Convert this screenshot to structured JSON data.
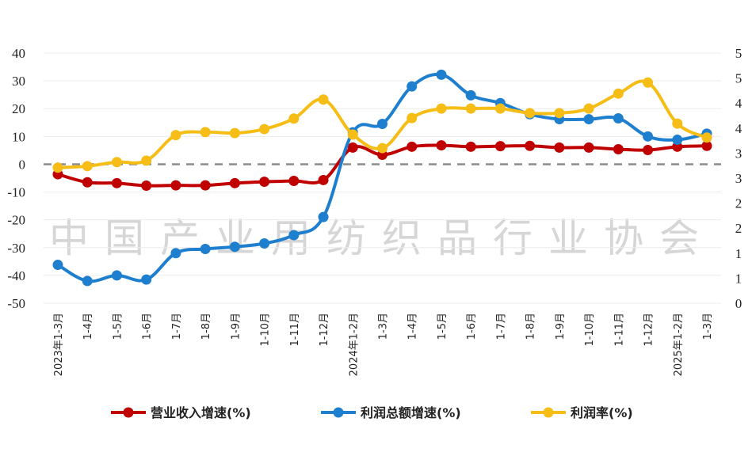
{
  "chart_data": {
    "type": "line",
    "categories": [
      "2023年1-3月",
      "1-4月",
      "1-5月",
      "1-6月",
      "1-7月",
      "1-8月",
      "1-9月",
      "1-10月",
      "1-11月",
      "1-12月",
      "2024年1-2月",
      "1-3月",
      "1-4月",
      "1-5月",
      "1-6月",
      "1-7月",
      "1-8月",
      "1-9月",
      "1-10月",
      "1-11月",
      "1-12月",
      "2025年1-2月",
      "1-3月"
    ],
    "left_axis": {
      "range": [
        -50,
        40
      ],
      "ticks": [
        "40",
        "30",
        "20",
        "10",
        "0",
        "-10",
        "-20",
        "-30",
        "-40",
        "-50"
      ]
    },
    "right_axis": {
      "range": [
        0,
        5
      ],
      "ticks": [
        "5",
        "5",
        "4",
        "4",
        "3",
        "3",
        "2",
        "2",
        "1",
        "1",
        "0"
      ]
    },
    "zero_line": "dashed",
    "grid": true,
    "legend_position": "bottom",
    "watermark": "中国产业用纺织品行业协会",
    "series": [
      {
        "name": "营业收入增速(%)",
        "axis": "left",
        "color": "#c00000",
        "values": [
          -3.6,
          -6.5,
          -6.8,
          -7.7,
          -7.6,
          -7.6,
          -6.8,
          -6.3,
          -6.0,
          -5.7,
          6.0,
          3.4,
          6.3,
          6.8,
          6.3,
          6.5,
          6.6,
          6.0,
          6.0,
          5.4,
          5.1,
          6.3,
          6.6
        ]
      },
      {
        "name": "利润总额增速(%)",
        "axis": "left",
        "color": "#1f7fcf",
        "values": [
          -36.2,
          -42.0,
          -40.0,
          -41.5,
          -32.0,
          -30.5,
          -29.7,
          -28.5,
          -25.5,
          -19.0,
          11.5,
          14.5,
          28.0,
          32.2,
          24.8,
          22.0,
          18.0,
          16.2,
          16.2,
          16.5,
          10.0,
          8.8,
          11.0
        ]
      },
      {
        "name": "利润率(%)",
        "axis": "right",
        "color": "#f5bd16",
        "values": [
          2.71,
          2.74,
          2.82,
          2.85,
          3.36,
          3.42,
          3.4,
          3.48,
          3.69,
          4.07,
          3.37,
          3.1,
          3.7,
          3.89,
          3.89,
          3.89,
          3.8,
          3.8,
          3.89,
          4.19,
          4.41,
          3.59,
          3.31
        ]
      }
    ]
  }
}
